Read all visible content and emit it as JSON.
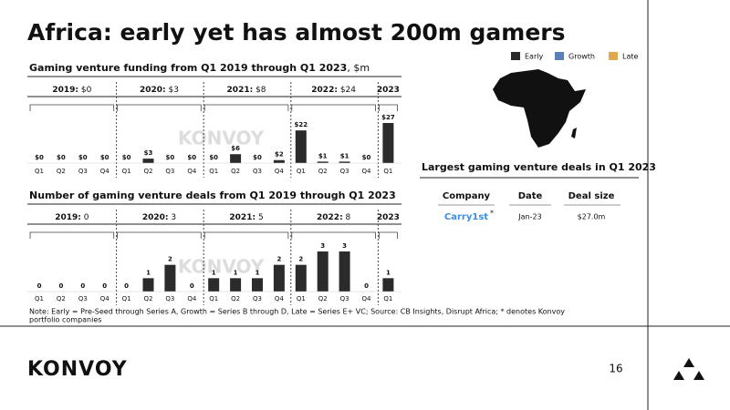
{
  "header": {
    "title": "Africa: early yet has almost 200m gamers"
  },
  "legend": [
    {
      "name": "Early",
      "color": "#2b2b2b"
    },
    {
      "name": "Growth",
      "color": "#5b7fb8"
    },
    {
      "name": "Late",
      "color": "#e0a94f"
    }
  ],
  "watermark": "KONVOY",
  "chart_data": [
    {
      "type": "bar",
      "title": "Gaming venture funding from Q1 2019 through Q1 2023",
      "title_unit": ", $m",
      "categories": [
        "Q1",
        "Q2",
        "Q3",
        "Q4",
        "Q1",
        "Q2",
        "Q3",
        "Q4",
        "Q1",
        "Q2",
        "Q3",
        "Q4",
        "Q1",
        "Q2",
        "Q3",
        "Q4",
        "Q1"
      ],
      "values": [
        0,
        0,
        0,
        0,
        0,
        3,
        0,
        0,
        0,
        6,
        0,
        2,
        22,
        1,
        1,
        0,
        27
      ],
      "value_labels": [
        "$0",
        "$0",
        "$0",
        "$0",
        "$0",
        "$3",
        "$0",
        "$0",
        "$0",
        "$6",
        "$0",
        "$2",
        "$22",
        "$1",
        "$1",
        "$0",
        "$27"
      ],
      "color": "#2b2b2b",
      "groups": [
        {
          "year": "2019:",
          "total": "$0"
        },
        {
          "year": "2020:",
          "total": "$3"
        },
        {
          "year": "2021:",
          "total": "$8"
        },
        {
          "year": "2022:",
          "total": "$24"
        },
        {
          "year": "2023"
        }
      ]
    },
    {
      "type": "bar",
      "title": "Number of gaming venture deals from Q1 2019 through Q1 2023",
      "categories": [
        "Q1",
        "Q2",
        "Q3",
        "Q4",
        "Q1",
        "Q2",
        "Q3",
        "Q4",
        "Q1",
        "Q2",
        "Q3",
        "Q4",
        "Q1",
        "Q2",
        "Q3",
        "Q4",
        "Q1"
      ],
      "values": [
        0,
        0,
        0,
        0,
        0,
        1,
        2,
        0,
        1,
        1,
        1,
        2,
        2,
        3,
        3,
        0,
        1
      ],
      "color": "#2b2b2b",
      "groups": [
        {
          "year": "2019:",
          "total": "0"
        },
        {
          "year": "2020:",
          "total": "3"
        },
        {
          "year": "2021:",
          "total": "5"
        },
        {
          "year": "2022:",
          "total": "8"
        },
        {
          "year": "2023"
        }
      ]
    }
  ],
  "table": {
    "title": "Largest gaming venture deals in Q1 2023",
    "headers": [
      "Company",
      "Date",
      "Deal size"
    ],
    "rows": [
      {
        "company": "Carry1st",
        "mark": "*",
        "date": "Jan-23",
        "deal_size": "$27.0m"
      }
    ]
  },
  "note": [
    "Note: Early = Pre-Seed through Series A, Growth = Series B through D, Late = Series E+ VC; Source: CB Insights, Disrupt Africa; * denotes Konvoy",
    "portfolio companies"
  ],
  "footer": {
    "logo": "KONVOY",
    "page": "16"
  }
}
